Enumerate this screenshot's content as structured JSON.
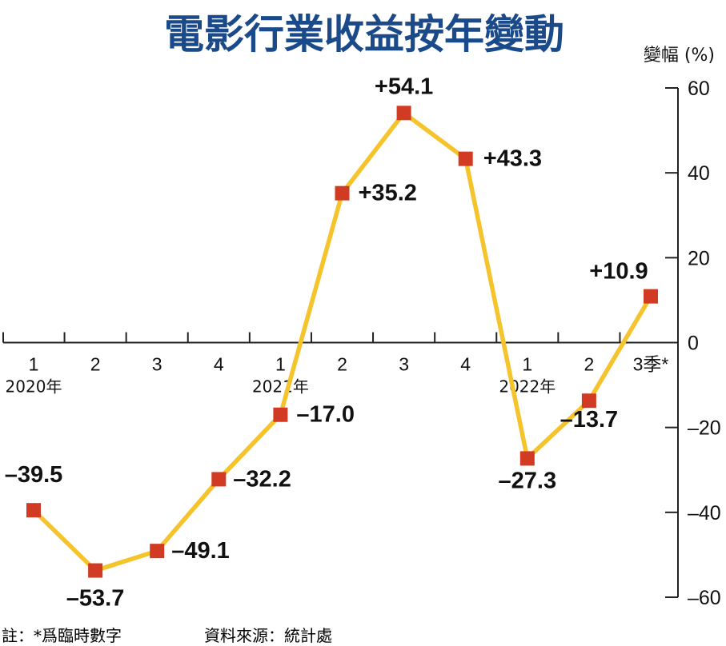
{
  "chart_data": {
    "type": "line",
    "title": "電影行業收益按年變動",
    "ylabel": "變幅 (%)",
    "ylim": [
      -60,
      60
    ],
    "yticks": [
      60,
      40,
      20,
      0,
      -20,
      -40,
      -60
    ],
    "ytick_labels": [
      "60",
      "40",
      "20",
      "0",
      "–20",
      "–40",
      "–60"
    ],
    "categories": [
      "1",
      "2",
      "3",
      "4",
      "1",
      "2",
      "3",
      "4",
      "1",
      "2",
      "3季*"
    ],
    "year_labels": [
      {
        "label": "2020年",
        "index": 0
      },
      {
        "label": "2021年",
        "index": 4
      },
      {
        "label": "2022年",
        "index": 8
      }
    ],
    "series": [
      {
        "values": [
          -39.5,
          -53.7,
          -49.1,
          -32.2,
          -17.0,
          35.2,
          54.1,
          43.3,
          -27.3,
          -13.7,
          10.9
        ],
        "labels": [
          "–39.5",
          "–53.7",
          "–49.1",
          "–32.2",
          "–17.0",
          "+35.2",
          "+54.1",
          "+43.3",
          "–27.3",
          "–13.7",
          "+10.9"
        ]
      }
    ],
    "colors": {
      "line": "#f5c42c",
      "marker": "#d23b23",
      "title": "#1a4a8a",
      "axis": "#222222"
    },
    "grid": false
  },
  "footnote": {
    "note": "註：*爲臨時數字",
    "source": "資料來源：統計處"
  }
}
